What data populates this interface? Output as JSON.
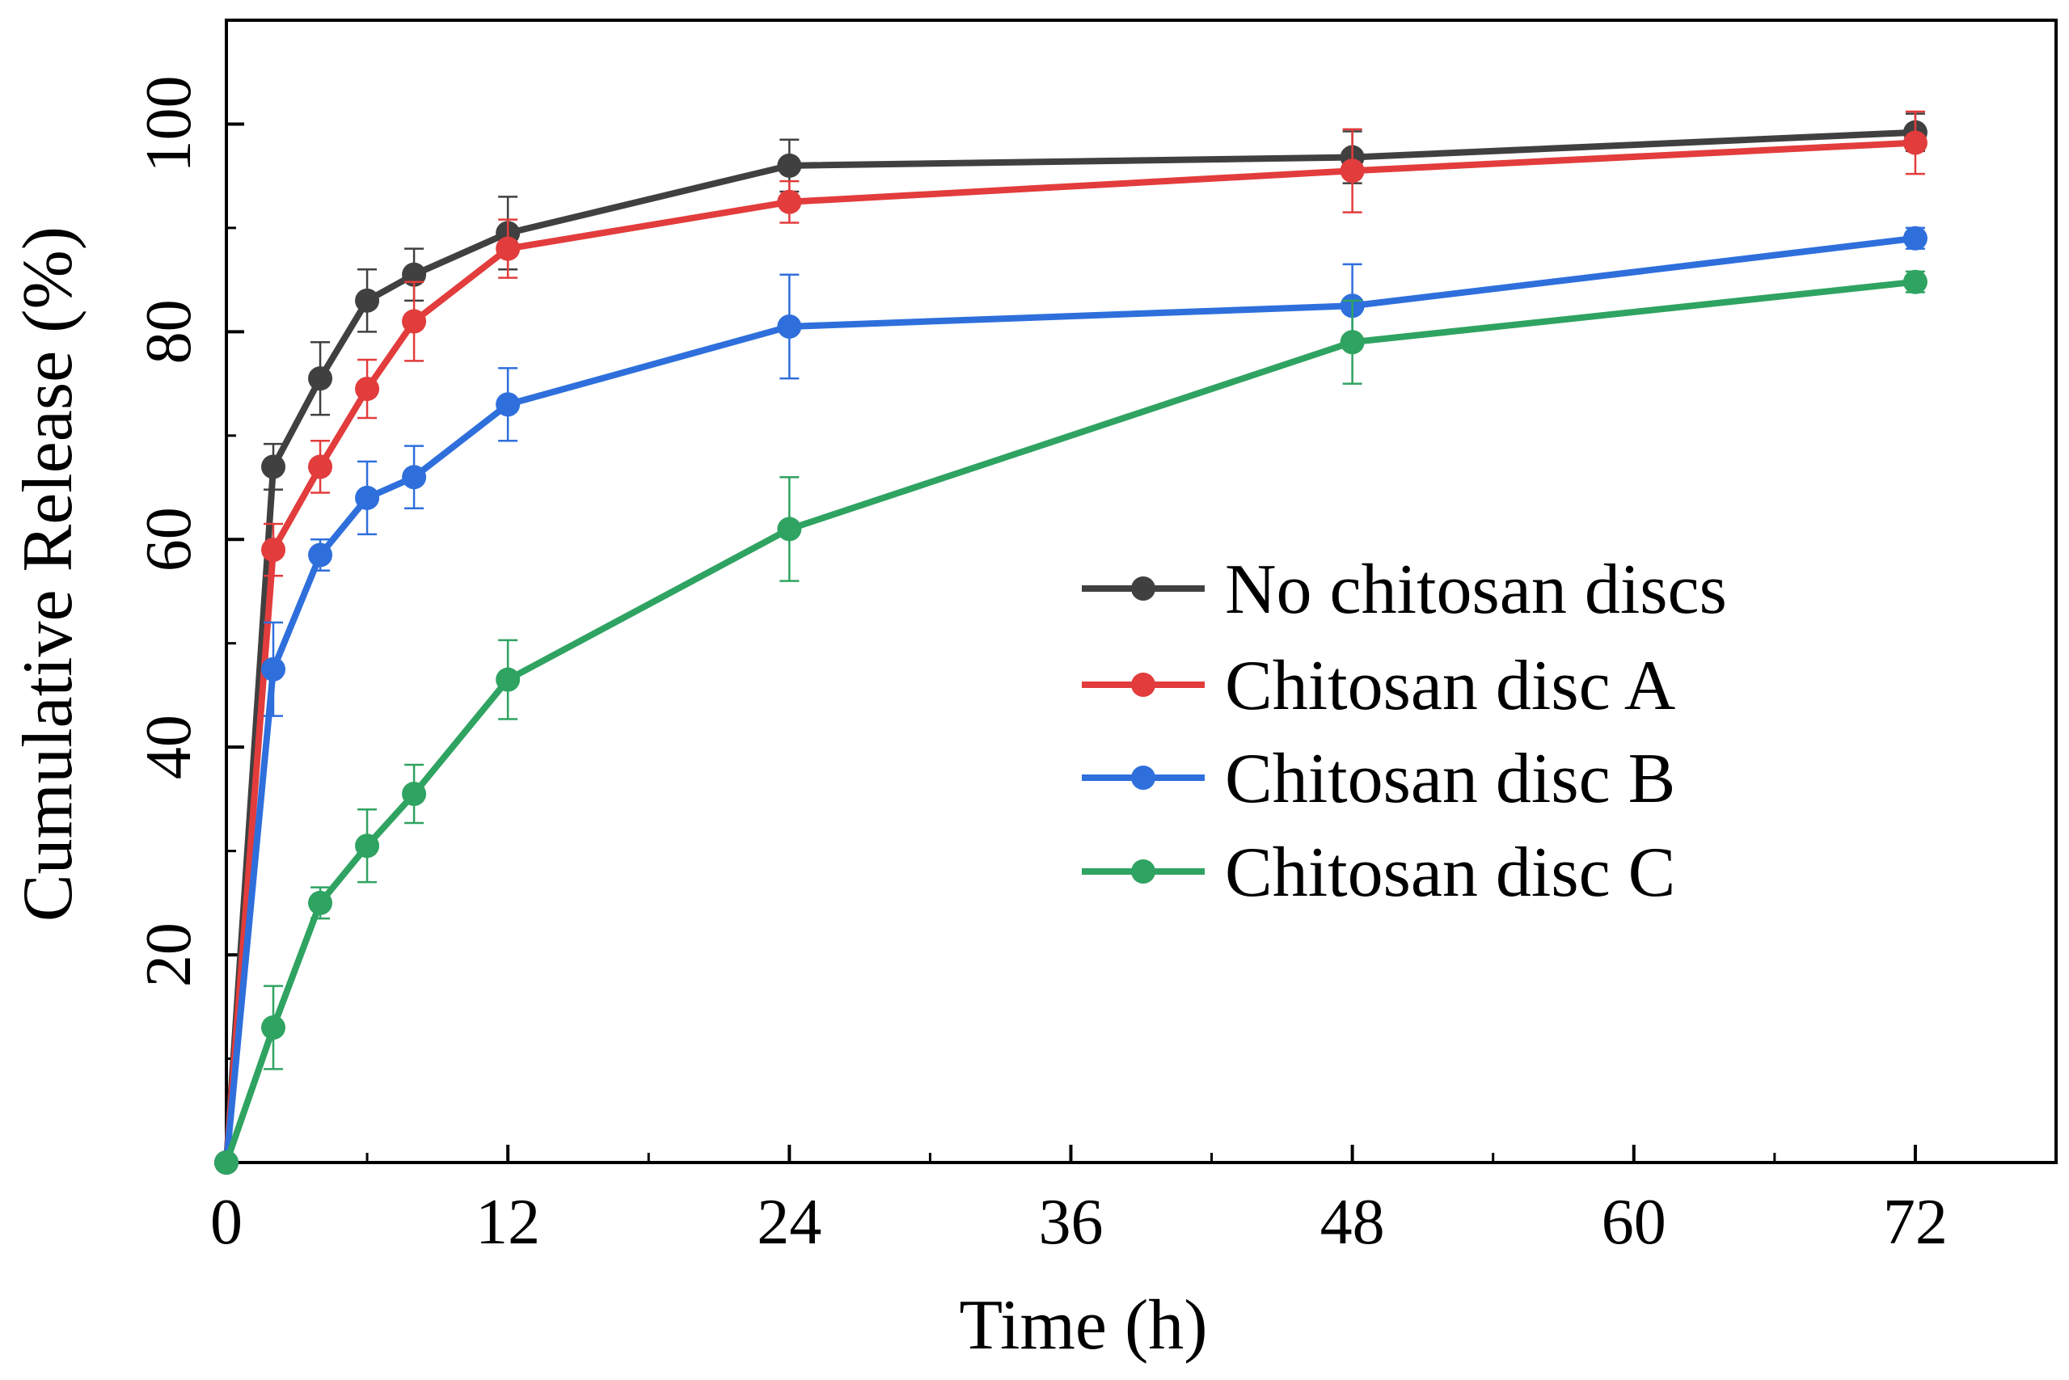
{
  "chart_data": {
    "type": "line",
    "title": "",
    "xlabel": "Time (h)",
    "ylabel": "Cumulative Release (%)",
    "xlim": [
      0,
      78
    ],
    "ylim": [
      0,
      110
    ],
    "x_ticks": [
      0,
      12,
      24,
      36,
      48,
      60,
      72
    ],
    "x_tick_labels": [
      "0",
      "12",
      "24",
      "36",
      "48",
      "60",
      "72"
    ],
    "y_ticks": [
      20,
      40,
      60,
      80,
      100
    ],
    "y_tick_labels": [
      "20",
      "40",
      "60",
      "80",
      "100"
    ],
    "grid": false,
    "legend_position": "center-right",
    "x": [
      0,
      2,
      4,
      6,
      8,
      12,
      24,
      48,
      72
    ],
    "series": [
      {
        "name": "No chitosan discs",
        "color": "#404040",
        "values": [
          0,
          67,
          75.5,
          83,
          85.5,
          89.5,
          96,
          96.8,
          99.2
        ],
        "errors": [
          0,
          2.2,
          3.5,
          3.0,
          2.5,
          3.5,
          2.5,
          2.5,
          1.8
        ]
      },
      {
        "name": "Chitosan disc A",
        "color": "#e23c3c",
        "values": [
          0,
          59,
          67,
          74.5,
          81,
          88,
          92.5,
          95.5,
          98.2
        ],
        "errors": [
          0,
          2.5,
          2.5,
          2.8,
          3.8,
          2.8,
          2.0,
          4.0,
          3.0
        ]
      },
      {
        "name": "Chitosan disc B",
        "color": "#2e6fdc",
        "values": [
          0,
          47.5,
          58.5,
          64,
          66,
          73,
          80.5,
          82.5,
          89
        ],
        "errors": [
          0,
          4.5,
          1.5,
          3.5,
          3.0,
          3.5,
          5.0,
          4.0,
          1.0
        ]
      },
      {
        "name": "Chitosan disc C",
        "color": "#2fa361",
        "values": [
          0,
          13,
          25,
          30.5,
          35.5,
          46.5,
          61,
          79,
          84.8
        ],
        "errors": [
          0,
          4.0,
          1.5,
          3.5,
          2.8,
          3.8,
          5.0,
          4.0,
          1.0
        ]
      }
    ]
  }
}
